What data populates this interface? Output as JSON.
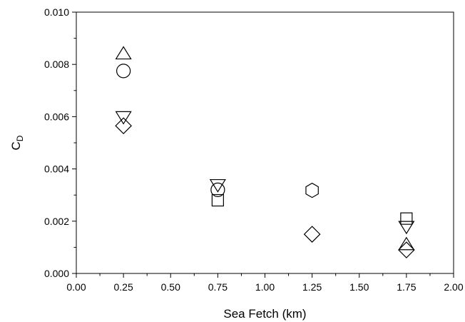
{
  "chart_data": {
    "type": "scatter",
    "xlabel": "Sea Fetch (km)",
    "ylabel_main": "C",
    "ylabel_sub": "D",
    "xlim": [
      0,
      2
    ],
    "ylim": [
      0,
      0.01
    ],
    "x_major_ticks": [
      "0.00",
      "0.25",
      "0.50",
      "0.75",
      "1.00",
      "1.25",
      "1.50",
      "1.75",
      "2.00"
    ],
    "y_major_ticks": [
      "0.000",
      "0.002",
      "0.004",
      "0.006",
      "0.008",
      "0.010"
    ],
    "grid": false,
    "legend": "none",
    "points": [
      {
        "x": 0.25,
        "y": 0.0084,
        "marker": "triangle-up"
      },
      {
        "x": 0.25,
        "y": 0.00775,
        "marker": "circle"
      },
      {
        "x": 0.25,
        "y": 0.006,
        "marker": "triangle-down"
      },
      {
        "x": 0.25,
        "y": 0.00565,
        "marker": "diamond"
      },
      {
        "x": 0.75,
        "y": 0.0034,
        "marker": "triangle-down"
      },
      {
        "x": 0.75,
        "y": 0.0032,
        "marker": "circle"
      },
      {
        "x": 0.75,
        "y": 0.0028,
        "marker": "square"
      },
      {
        "x": 1.25,
        "y": 0.00318,
        "marker": "hexagon"
      },
      {
        "x": 1.25,
        "y": 0.0015,
        "marker": "diamond"
      },
      {
        "x": 1.75,
        "y": 0.0021,
        "marker": "square"
      },
      {
        "x": 1.75,
        "y": 0.0018,
        "marker": "triangle-down"
      },
      {
        "x": 1.75,
        "y": 0.0011,
        "marker": "triangle-up"
      },
      {
        "x": 1.75,
        "y": 0.0009,
        "marker": "diamond"
      }
    ]
  }
}
